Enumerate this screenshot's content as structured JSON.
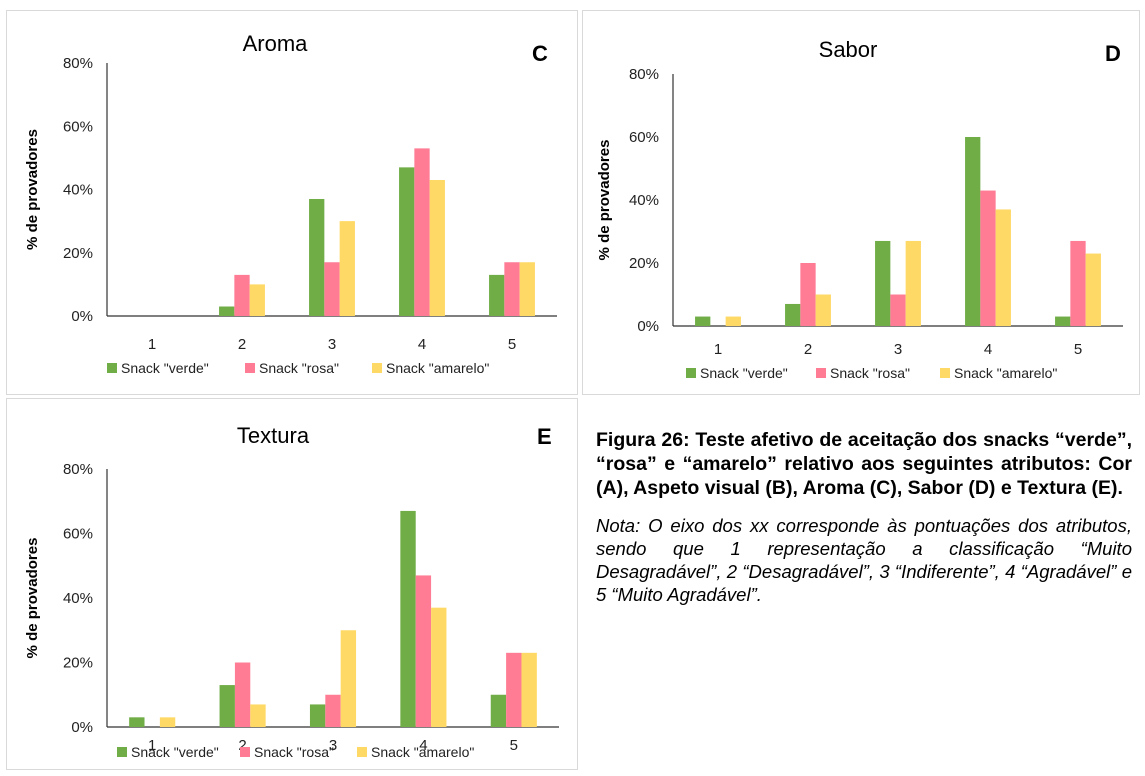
{
  "colors": {
    "verde": "#70ad47",
    "rosa": "#ff7c94",
    "amarelo": "#ffd966"
  },
  "chart_data": [
    {
      "id": "c",
      "panel_label": "C",
      "type": "bar",
      "title": "Aroma",
      "xlabel": "",
      "ylabel": "% de provadores",
      "categories": [
        "1",
        "2",
        "3",
        "4",
        "5"
      ],
      "ylim": [
        0,
        80
      ],
      "yticks": [
        "0%",
        "20%",
        "40%",
        "60%",
        "80%"
      ],
      "grid": false,
      "legend_position": "bottom",
      "series": [
        {
          "name": "Snack \"verde\"",
          "color": "#70ad47",
          "values": [
            0,
            3,
            37,
            47,
            13
          ]
        },
        {
          "name": "Snack \"rosa\"",
          "color": "#ff7c94",
          "values": [
            0,
            13,
            17,
            53,
            17
          ]
        },
        {
          "name": "Snack \"amarelo\"",
          "color": "#ffd966",
          "values": [
            0,
            10,
            30,
            43,
            17
          ]
        }
      ]
    },
    {
      "id": "d",
      "panel_label": "D",
      "type": "bar",
      "title": "Sabor",
      "xlabel": "",
      "ylabel": "% de provadores",
      "categories": [
        "1",
        "2",
        "3",
        "4",
        "5"
      ],
      "ylim": [
        0,
        80
      ],
      "yticks": [
        "0%",
        "20%",
        "40%",
        "60%",
        "80%"
      ],
      "grid": false,
      "legend_position": "bottom",
      "series": [
        {
          "name": "Snack \"verde\"",
          "color": "#70ad47",
          "values": [
            3,
            7,
            27,
            60,
            3
          ]
        },
        {
          "name": "Snack \"rosa\"",
          "color": "#ff7c94",
          "values": [
            0,
            20,
            10,
            43,
            27
          ]
        },
        {
          "name": "Snack \"amarelo\"",
          "color": "#ffd966",
          "values": [
            3,
            10,
            27,
            37,
            23
          ]
        }
      ]
    },
    {
      "id": "e",
      "panel_label": "E",
      "type": "bar",
      "title": "Textura",
      "xlabel": "",
      "ylabel": "% de provadores",
      "categories": [
        "1",
        "2",
        "3",
        "4",
        "5"
      ],
      "ylim": [
        0,
        80
      ],
      "yticks": [
        "0%",
        "20%",
        "40%",
        "60%",
        "80%"
      ],
      "grid": false,
      "legend_position": "bottom",
      "series": [
        {
          "name": "Snack \"verde\"",
          "color": "#70ad47",
          "values": [
            3,
            13,
            7,
            67,
            10
          ]
        },
        {
          "name": "Snack \"rosa\"",
          "color": "#ff7c94",
          "values": [
            0,
            20,
            10,
            47,
            23
          ]
        },
        {
          "name": "Snack \"amarelo\"",
          "color": "#ffd966",
          "values": [
            3,
            7,
            30,
            37,
            23
          ]
        }
      ]
    }
  ],
  "caption": {
    "title": "Figura 26: Teste afetivo de aceitação dos snacks “verde”, “rosa” e “amarelo” relativo aos seguintes atributos: Cor (A), Aspeto visual (B), Aroma (C), Sabor (D) e Textura (E).",
    "note": "Nota: O eixo dos xx corresponde às pontuações dos atributos, sendo que 1 representação a classificação “Muito Desagradável”, 2 “Desagradável”, 3 “Indiferente”, 4 “Agradável” e 5 “Muito Agradável”."
  }
}
